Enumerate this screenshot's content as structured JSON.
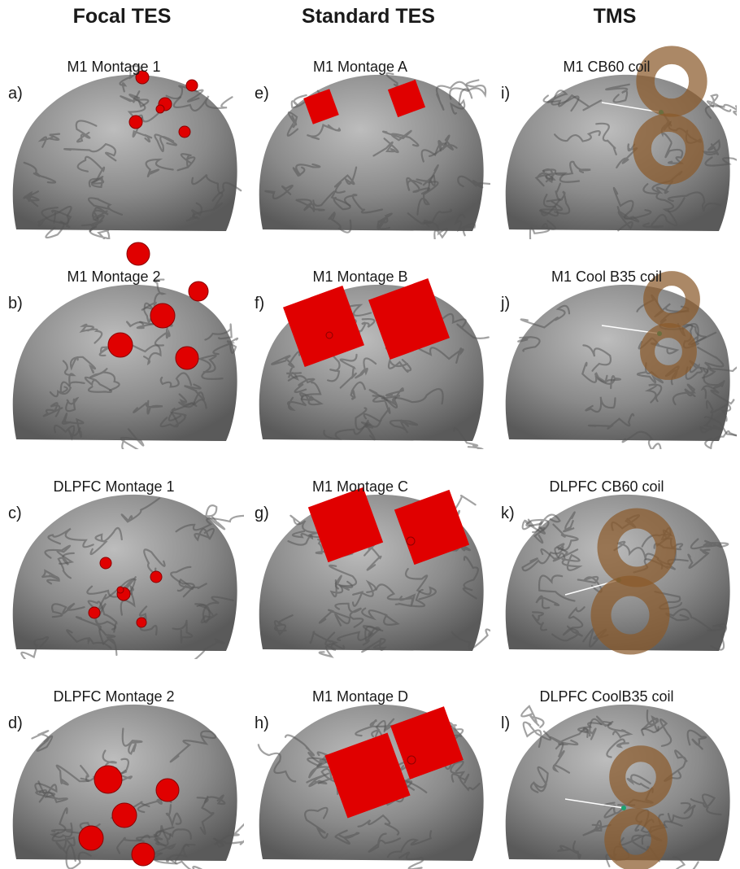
{
  "headers": [
    "Focal TES",
    "Standard TES",
    "TMS"
  ],
  "panels": [
    {
      "letter": "a)",
      "title": "M1 Montage 1",
      "kind": "dots"
    },
    {
      "letter": "b)",
      "title": "M1 Montage 2",
      "kind": "dots"
    },
    {
      "letter": "c)",
      "title": "DLPFC Montage 1",
      "kind": "dots"
    },
    {
      "letter": "d)",
      "title": "DLPFC Montage 2",
      "kind": "dots"
    },
    {
      "letter": "e)",
      "title": "M1 Montage A",
      "kind": "pads"
    },
    {
      "letter": "f)",
      "title": "M1 Montage B",
      "kind": "pads"
    },
    {
      "letter": "g)",
      "title": "M1 Montage C",
      "kind": "pads"
    },
    {
      "letter": "h)",
      "title": "M1 Montage D",
      "kind": "pads"
    },
    {
      "letter": "i)",
      "title": "M1 CB60 coil",
      "kind": "coil"
    },
    {
      "letter": "j)",
      "title": "M1 Cool B35 coil",
      "kind": "coil"
    },
    {
      "letter": "k)",
      "title": "DLPFC CB60 coil",
      "kind": "coil"
    },
    {
      "letter": "l)",
      "title": "DLPFC CoolB35 coil",
      "kind": "coil"
    }
  ],
  "colors": {
    "brain": "#8a8a8a",
    "brain_dark": "#555555",
    "electrode": "#e00000",
    "coil": "#8b5a2b"
  }
}
